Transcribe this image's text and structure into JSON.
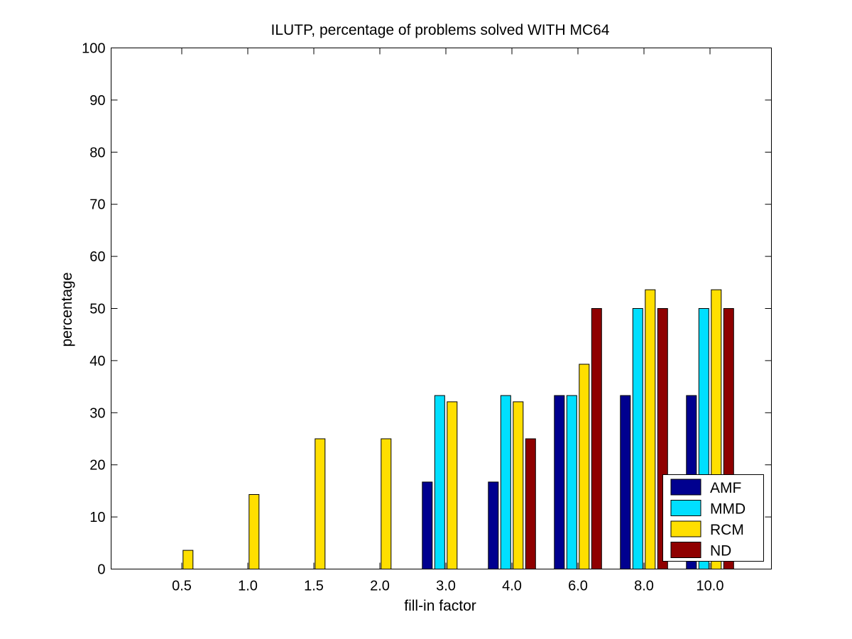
{
  "chart_data": {
    "type": "bar",
    "title": "ILUTP, percentage of problems solved WITH MC64",
    "xlabel": "fill-in factor",
    "ylabel": "percentage",
    "ylim": [
      0,
      100
    ],
    "yticks": [
      0,
      10,
      20,
      30,
      40,
      50,
      60,
      70,
      80,
      90,
      100
    ],
    "categories": [
      "0.5",
      "1.0",
      "1.5",
      "2.0",
      "3.0",
      "4.0",
      "6.0",
      "8.0",
      "10.0"
    ],
    "series": [
      {
        "name": "AMF",
        "color": "#00008f",
        "values": [
          0,
          0,
          0,
          0,
          16.7,
          16.7,
          33.3,
          33.3,
          33.3
        ]
      },
      {
        "name": "MMD",
        "color": "#00dfff",
        "values": [
          0,
          0,
          0,
          0,
          33.3,
          33.3,
          33.3,
          50,
          50
        ]
      },
      {
        "name": "RCM",
        "color": "#ffdf00",
        "values": [
          3.6,
          14.3,
          25,
          25,
          32.1,
          32.1,
          39.3,
          53.6,
          53.6
        ]
      },
      {
        "name": "ND",
        "color": "#8f0000",
        "values": [
          0,
          0,
          0,
          0,
          0,
          25,
          50,
          50,
          50
        ]
      }
    ],
    "legend": {
      "position": "bottom-right",
      "labels": [
        "AMF",
        "MMD",
        "RCM",
        " ND"
      ]
    },
    "grid": false
  }
}
